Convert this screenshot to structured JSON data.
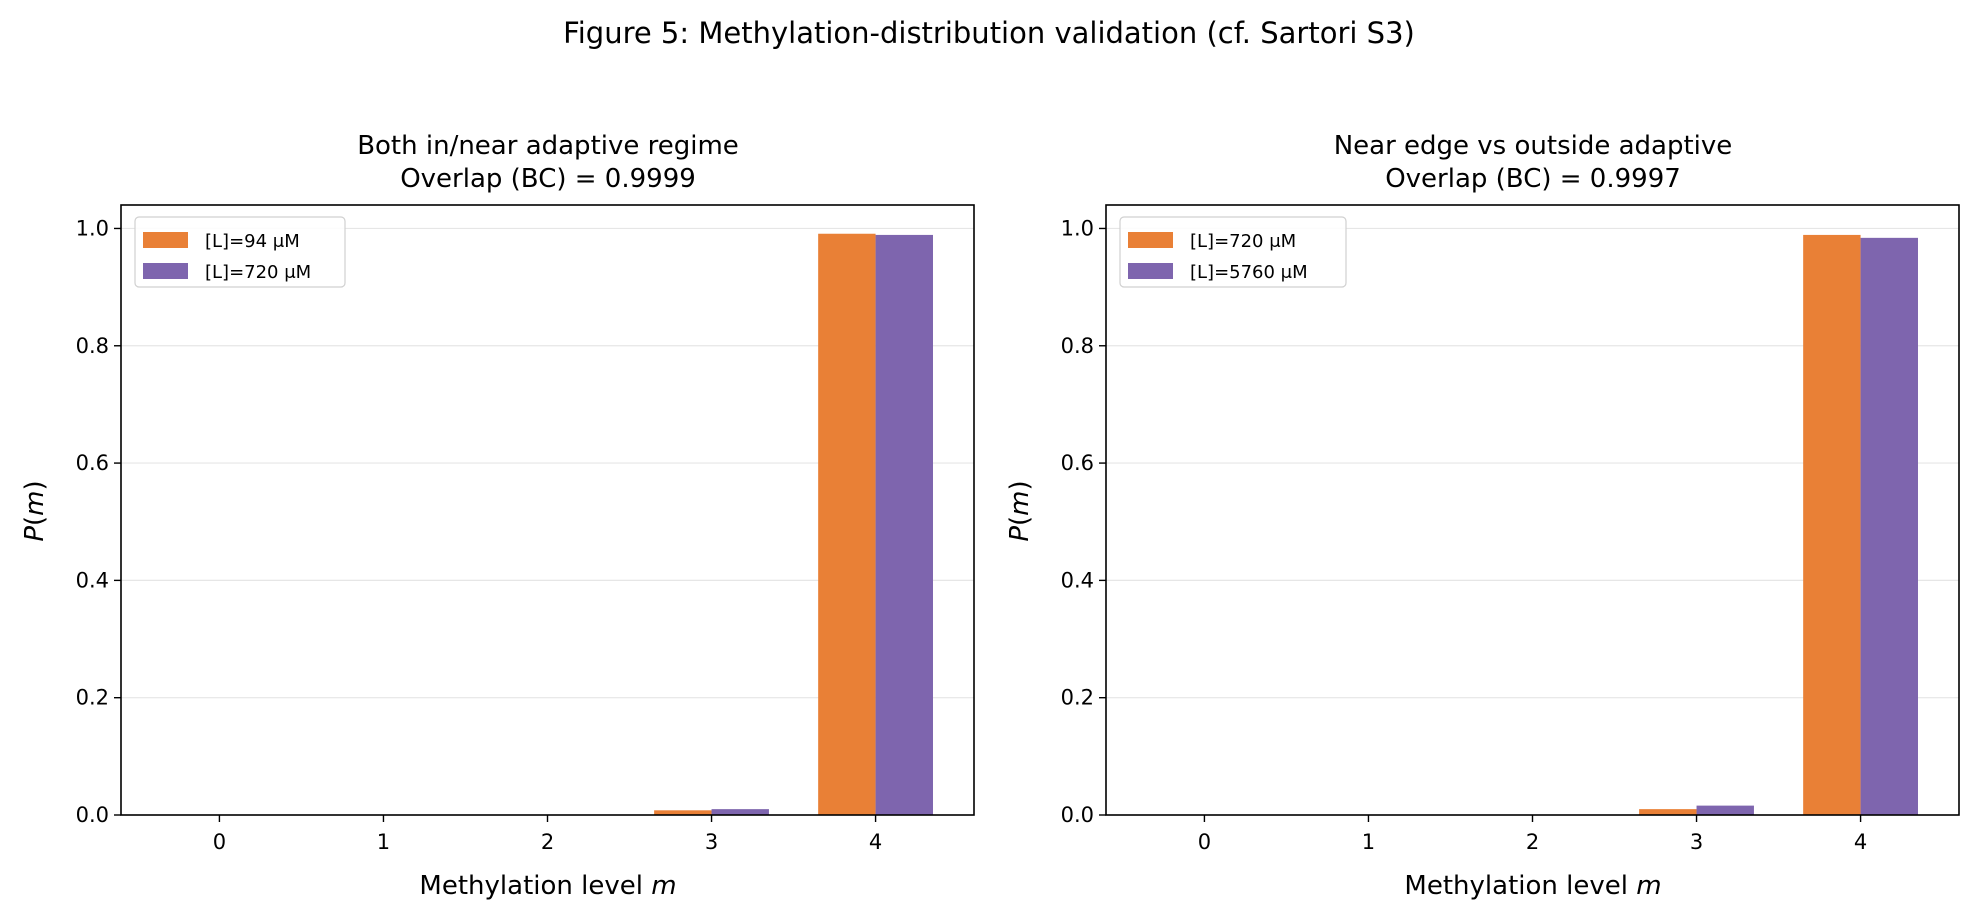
{
  "figure_title": "Figure 5: Methylation-distribution validation (cf. Sartori S3)",
  "chart_data": [
    {
      "type": "bar",
      "title_line1": "Both in/near adaptive regime",
      "title_line2": "Overlap (BC) = 0.9999",
      "xlabel_text": "Methylation level ",
      "xlabel_var": "m",
      "ylabel_var": "P",
      "ylabel_arg": "m",
      "categories": [
        "0",
        "1",
        "2",
        "3",
        "4"
      ],
      "ylim": [
        0,
        1.04
      ],
      "yticks": [
        "0.0",
        "0.2",
        "0.4",
        "0.6",
        "0.8",
        "1.0"
      ],
      "grid": true,
      "legend_position": "upper-left",
      "series": [
        {
          "name": "[L]=94 μM",
          "color": "#E98036",
          "values": [
            0.0,
            0.0,
            0.0,
            0.008,
            0.991
          ]
        },
        {
          "name": "[L]=720 μM",
          "color": "#7E65AE",
          "values": [
            0.0,
            0.0,
            0.0,
            0.01,
            0.989
          ]
        }
      ]
    },
    {
      "type": "bar",
      "title_line1": "Near edge vs outside adaptive",
      "title_line2": "Overlap (BC) = 0.9997",
      "xlabel_text": "Methylation level ",
      "xlabel_var": "m",
      "ylabel_var": "P",
      "ylabel_arg": "m",
      "categories": [
        "0",
        "1",
        "2",
        "3",
        "4"
      ],
      "ylim": [
        0,
        1.04
      ],
      "yticks": [
        "0.0",
        "0.2",
        "0.4",
        "0.6",
        "0.8",
        "1.0"
      ],
      "grid": true,
      "legend_position": "upper-left",
      "series": [
        {
          "name": "[L]=720 μM",
          "color": "#E98036",
          "values": [
            0.0,
            0.0,
            0.0,
            0.01,
            0.989
          ]
        },
        {
          "name": "[L]=5760 μM",
          "color": "#7E65AE",
          "values": [
            0.0,
            0.0,
            0.0,
            0.016,
            0.984
          ]
        }
      ]
    }
  ]
}
